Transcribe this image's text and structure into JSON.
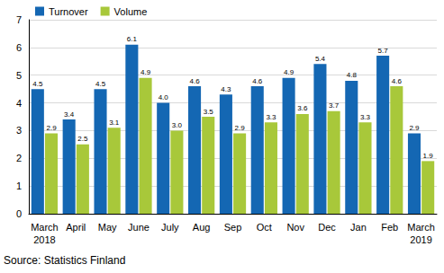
{
  "chart_data": {
    "type": "bar",
    "categories": [
      "March\n2018",
      "April",
      "May",
      "June",
      "July",
      "Aug",
      "Sep",
      "Oct",
      "Nov",
      "Dec",
      "Jan",
      "Feb",
      "March\n2019"
    ],
    "series": [
      {
        "name": "Turnover",
        "color": "#1467b3",
        "values": [
          4.5,
          3.4,
          4.5,
          6.1,
          4.0,
          4.6,
          4.3,
          4.6,
          4.9,
          5.4,
          4.8,
          5.7,
          2.9
        ],
        "value_labels": [
          "4.5",
          "3.4",
          "4.5",
          "6.1",
          "4.0",
          "4.6",
          "4.3",
          "4.6",
          "4.9",
          "5.4",
          "4.8",
          "5.7",
          "2.9"
        ]
      },
      {
        "name": "Volume",
        "color": "#a8c83a",
        "values": [
          2.9,
          2.5,
          3.1,
          4.9,
          3.0,
          3.5,
          2.9,
          3.3,
          3.6,
          3.7,
          3.3,
          4.6,
          1.9
        ],
        "value_labels": [
          "2.9",
          "2.5",
          "3.1",
          "4.9",
          "3.0",
          "3.5",
          "2.9",
          "3.3",
          "3.6",
          "3.7",
          "3.3",
          "4.6",
          "1.9"
        ]
      }
    ],
    "ylim": [
      0,
      7
    ],
    "yticks": [
      0,
      1,
      2,
      3,
      4,
      5,
      6,
      7
    ],
    "grid": true,
    "legend": "top-left",
    "data_labels": true,
    "source": "Source: Statistics Finland"
  }
}
